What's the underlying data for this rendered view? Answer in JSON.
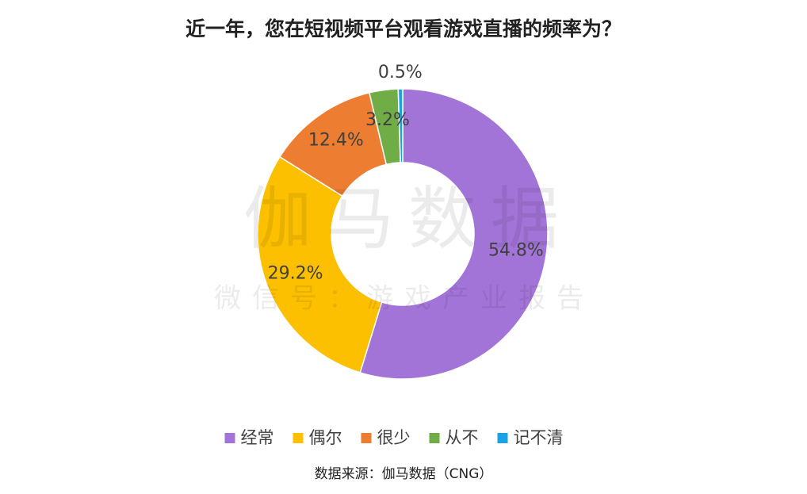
{
  "chart_data": {
    "type": "donut",
    "title": "近一年，您在短视频平台观看游戏直播的频率为？",
    "categories": [
      "经常",
      "偶尔",
      "很少",
      "从不",
      "记不清"
    ],
    "values": [
      54.8,
      29.2,
      12.4,
      3.2,
      0.5
    ],
    "value_labels": [
      "54.8%",
      "29.2%",
      "12.4%",
      "3.2%",
      "0.5%"
    ],
    "colors": [
      "#a374d8",
      "#fcc000",
      "#ed7d31",
      "#70ad47",
      "#1ba1e6"
    ],
    "legend": "bottom",
    "source": "数据来源：伽马数据（CNG）",
    "watermark": [
      "伽马数据",
      "微信号：游戏产业报告"
    ]
  }
}
